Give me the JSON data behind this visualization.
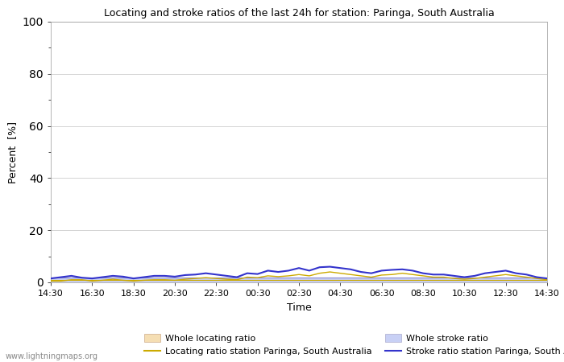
{
  "title": "Locating and stroke ratios of the last 24h for station: Paringa, South Australia",
  "xlabel": "Time",
  "ylabel": "Percent  [%]",
  "ylim": [
    0,
    100
  ],
  "yticks": [
    0,
    20,
    40,
    60,
    80,
    100
  ],
  "yticks_minor": [
    10,
    30,
    50,
    70,
    90
  ],
  "x_labels": [
    "14:30",
    "16:30",
    "18:30",
    "20:30",
    "22:30",
    "00:30",
    "02:30",
    "04:30",
    "06:30",
    "08:30",
    "10:30",
    "12:30",
    "14:30"
  ],
  "background_color": "#ffffff",
  "plot_bg_color": "#ffffff",
  "watermark": "www.lightningmaps.org",
  "whole_locating_fill_color": "#f5deb3",
  "whole_stroke_fill_color": "#c8d0f5",
  "station_locating_line_color": "#ccaa00",
  "station_stroke_line_color": "#3333cc",
  "whole_locating_data": [
    1.0,
    1.0,
    1.0,
    1.0,
    1.0,
    1.0,
    1.0,
    1.0,
    1.0,
    1.0,
    1.0,
    1.0,
    1.0,
    1.0,
    1.0,
    1.0,
    1.0,
    1.0,
    1.0,
    1.0,
    1.0,
    1.0,
    1.0,
    1.0,
    1.0,
    1.0,
    1.0,
    1.0,
    1.0,
    1.0,
    1.0,
    1.0,
    1.0,
    1.0,
    1.0,
    1.0,
    1.0,
    1.0,
    1.0,
    1.0,
    1.0,
    1.0,
    1.0,
    1.0,
    1.0,
    1.0,
    1.0,
    1.0,
    1.0
  ],
  "whole_stroke_data": [
    2.0,
    2.0,
    2.0,
    2.0,
    2.0,
    2.0,
    2.0,
    2.0,
    2.0,
    2.0,
    2.0,
    2.0,
    2.0,
    2.0,
    2.0,
    2.0,
    2.0,
    2.0,
    2.0,
    2.0,
    2.0,
    2.0,
    2.0,
    2.0,
    2.0,
    2.0,
    2.0,
    2.0,
    2.0,
    2.0,
    2.0,
    2.0,
    2.0,
    2.0,
    2.0,
    2.0,
    2.0,
    2.0,
    2.0,
    2.0,
    2.0,
    2.0,
    2.0,
    2.0,
    2.0,
    2.0,
    2.0,
    2.0,
    2.0
  ],
  "station_locating_data": [
    0.5,
    0.5,
    1.0,
    1.0,
    0.5,
    0.8,
    1.2,
    0.8,
    0.5,
    0.8,
    1.0,
    1.0,
    0.8,
    1.2,
    1.5,
    1.8,
    1.5,
    1.2,
    1.0,
    2.0,
    1.8,
    2.5,
    2.2,
    2.5,
    3.0,
    2.5,
    3.5,
    4.0,
    3.5,
    3.0,
    2.5,
    2.0,
    2.8,
    3.0,
    3.5,
    3.0,
    2.5,
    2.0,
    2.0,
    1.5,
    1.2,
    1.5,
    2.0,
    2.5,
    3.0,
    2.5,
    2.0,
    1.5,
    1.0
  ],
  "station_stroke_data": [
    1.5,
    2.0,
    2.5,
    1.8,
    1.5,
    2.0,
    2.5,
    2.2,
    1.5,
    2.0,
    2.5,
    2.5,
    2.2,
    2.8,
    3.0,
    3.5,
    3.0,
    2.5,
    2.0,
    3.5,
    3.2,
    4.5,
    4.0,
    4.5,
    5.5,
    4.5,
    5.8,
    6.0,
    5.5,
    5.0,
    4.0,
    3.5,
    4.5,
    4.8,
    5.0,
    4.5,
    3.5,
    3.0,
    3.0,
    2.5,
    2.0,
    2.5,
    3.5,
    4.0,
    4.5,
    3.5,
    3.0,
    2.0,
    1.5
  ],
  "n_points": 49,
  "legend_labels": [
    "Whole locating ratio",
    "Locating ratio station Paringa, South Australia",
    "Whole stroke ratio",
    "Stroke ratio station Paringa, South Australia"
  ]
}
